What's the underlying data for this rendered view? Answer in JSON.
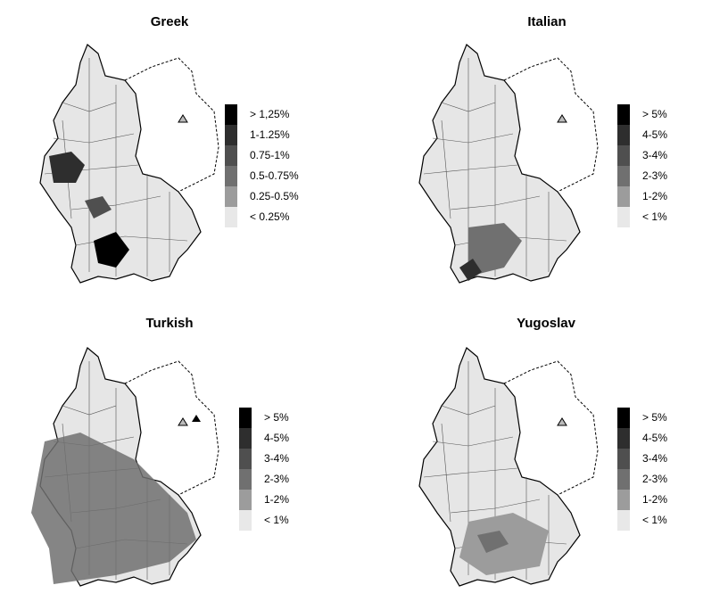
{
  "maps": [
    {
      "title": "Greek",
      "legend": [
        {
          "label": "> 1,25%",
          "color": "#000000"
        },
        {
          "label": "1-1.25%",
          "color": "#2e2e2e"
        },
        {
          "label": "0.75-1%",
          "color": "#4f4f4f"
        },
        {
          "label": "0.5-0.75%",
          "color": "#707070"
        },
        {
          "label": "0.25-0.5%",
          "color": "#9c9c9c"
        },
        {
          "label": "< 0.25%",
          "color": "#e8e8e8"
        }
      ]
    },
    {
      "title": "Italian",
      "legend": [
        {
          "label": "> 5%",
          "color": "#000000"
        },
        {
          "label": "4-5%",
          "color": "#2e2e2e"
        },
        {
          "label": "3-4%",
          "color": "#4f4f4f"
        },
        {
          "label": "2-3%",
          "color": "#707070"
        },
        {
          "label": "1-2%",
          "color": "#9c9c9c"
        },
        {
          "label": "< 1%",
          "color": "#e8e8e8"
        }
      ]
    },
    {
      "title": "Turkish",
      "legend": [
        {
          "label": "> 5%",
          "color": "#000000"
        },
        {
          "label": "4-5%",
          "color": "#2e2e2e"
        },
        {
          "label": "3-4%",
          "color": "#4f4f4f"
        },
        {
          "label": "2-3%",
          "color": "#707070"
        },
        {
          "label": "1-2%",
          "color": "#9c9c9c"
        },
        {
          "label": "< 1%",
          "color": "#e8e8e8"
        }
      ]
    },
    {
      "title": "Yugoslav",
      "legend": [
        {
          "label": "> 5%",
          "color": "#000000"
        },
        {
          "label": "4-5%",
          "color": "#2e2e2e"
        },
        {
          "label": "3-4%",
          "color": "#4f4f4f"
        },
        {
          "label": "2-3%",
          "color": "#707070"
        },
        {
          "label": "1-2%",
          "color": "#9c9c9c"
        },
        {
          "label": "< 1%",
          "color": "#e8e8e8"
        }
      ]
    }
  ]
}
